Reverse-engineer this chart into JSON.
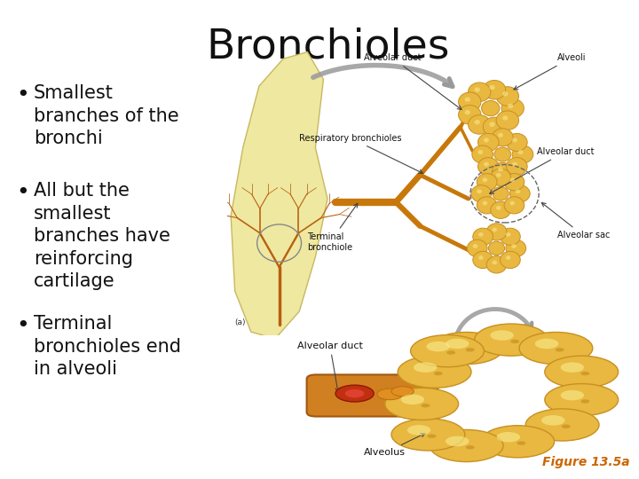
{
  "title": "Bronchioles",
  "title_fontsize": 34,
  "title_color": "#111111",
  "background_color": "#ffffff",
  "bullet_points": [
    "Smallest\nbranches of the\nbronchi",
    "All but the\nsmallest\nbranches have\nreinforcing\ncartilage",
    "Terminal\nbronchioles end\nin alveoli"
  ],
  "bullet_fontsize": 15,
  "bullet_color": "#111111",
  "figure_caption": "Figure 13.5a",
  "figure_caption_color": "#cc6600",
  "figure_caption_fontsize": 10,
  "branch_color": "#c8780a",
  "alv_color": "#e8b840",
  "alv_edge": "#c89020",
  "lung_color": "#efe8a0",
  "arrow_color": "#999999",
  "label_fontsize": 7,
  "label_color": "#111111"
}
